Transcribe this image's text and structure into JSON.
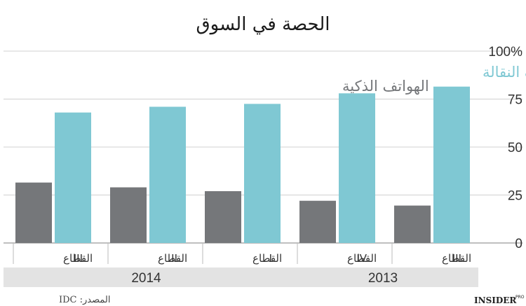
{
  "chart_data": {
    "type": "bar",
    "title": "الحصة في السوق",
    "categories": [
      "القطاع III",
      "القطاع II",
      "القطاع I",
      "القطاع IV",
      "القطاع III"
    ],
    "category_labels": [
      {
        "numeral": "III",
        "word": "القطاع"
      },
      {
        "numeral": "II",
        "word": "القطاع"
      },
      {
        "numeral": "I",
        "word": "القطاع"
      },
      {
        "numeral": "IV",
        "word": "القطاع"
      },
      {
        "numeral": "III",
        "word": "القطاع"
      }
    ],
    "years": [
      {
        "label": "2014",
        "span": [
          0,
          2
        ]
      },
      {
        "label": "2013",
        "span": [
          3,
          4
        ]
      }
    ],
    "series": [
      {
        "name": "الهواتف الذكية",
        "color": "#75777a",
        "values": [
          31.5,
          29,
          27,
          22,
          19.5
        ]
      },
      {
        "name": "الهواتف النقالة",
        "color": "#7fc8d3",
        "values": [
          68,
          71,
          72.5,
          78,
          81.5
        ]
      }
    ],
    "y_ticks": [
      "0",
      "25",
      "50",
      "75",
      "100%"
    ],
    "ylim": [
      0,
      100
    ],
    "grid": true,
    "axis_side": "right",
    "legend_placement": "inline-top-right",
    "colors": {
      "grid": "#d0d0d0",
      "year_band": "#e3e3e3"
    }
  },
  "footer": {
    "source": "المصدر: IDC",
    "brand": "INSIDER",
    "brand_sup": "PRO"
  }
}
